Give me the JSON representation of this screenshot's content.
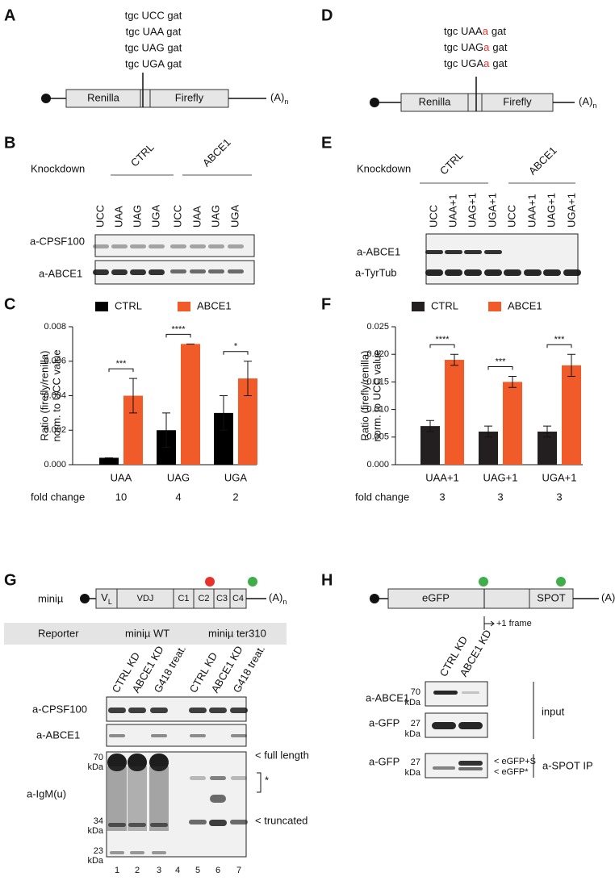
{
  "panels": {
    "A": {
      "label": "A",
      "sequences": [
        "tgc UCC gat",
        "tgc UAA gat",
        "tgc UAG gat",
        "tgc UGA gat"
      ],
      "construct": {
        "renilla": "Renilla",
        "firefly": "Firefly",
        "polya": "(A)",
        "polya_sub": "n"
      }
    },
    "B": {
      "label": "B",
      "knockdown": "Knockdown",
      "groups": [
        "CTRL",
        "ABCE1"
      ],
      "lanes": [
        "UCC",
        "UAA",
        "UAG",
        "UGA",
        "UCC",
        "UAA",
        "UAG",
        "UGA"
      ],
      "antibodies": [
        "a-CPSF100",
        "a-ABCE1"
      ]
    },
    "C": {
      "label": "C"
    },
    "D": {
      "label": "D",
      "sequences": [
        {
          "pre": "tgc UAA",
          "ins": "a",
          "post": "gat"
        },
        {
          "pre": "tgc UAG",
          "ins": "a",
          "post": "gat"
        },
        {
          "pre": "tgc UGA",
          "ins": "a",
          "post": "gat"
        }
      ],
      "construct": {
        "renilla": "Renilla",
        "firefly": "Firefly",
        "polya": "(A)",
        "polya_sub": "n"
      }
    },
    "E": {
      "label": "E",
      "knockdown": "Knockdown",
      "groups": [
        "CTRL",
        "ABCE1"
      ],
      "lanes": [
        "UCC",
        "UAA+1",
        "UAG+1",
        "UGA+1",
        "UCC",
        "UAA+1",
        "UAG+1",
        "UGA+1"
      ],
      "antibodies": [
        "a-ABCE1",
        "a-TyrTub"
      ]
    },
    "F": {
      "label": "F"
    },
    "G": {
      "label": "G",
      "name": "miniµ",
      "construct": {
        "v": "V",
        "v_sub": "L",
        "vdj": "VDJ",
        "c1": "C1",
        "c2": "C2",
        "c3": "C3",
        "c4": "C4",
        "polya": "(A)",
        "polya_sub": "n"
      },
      "header": {
        "reporter": "Reporter",
        "wt": "miniµ WT",
        "ter": "miniµ ter310"
      },
      "lanes": [
        "CTRL KD",
        "ABCE1 KD",
        "G418 treat.",
        "CTRL KD",
        "ABCE1 KD",
        "G418 treat."
      ],
      "antibodies": [
        "a-CPSF100",
        "a-ABCE1",
        "a-IgM(u)"
      ],
      "markers": [
        {
          "size": "70",
          "unit": "kDa"
        },
        {
          "size": "34",
          "unit": "kDa"
        },
        {
          "size": "23",
          "unit": "kDa"
        }
      ],
      "annotations": {
        "full": "< full length",
        "star": "*",
        "truncated": "< truncated"
      },
      "lane_numbers": [
        1,
        2,
        3,
        4,
        5,
        6,
        7
      ]
    },
    "H": {
      "label": "H",
      "construct": {
        "egfp": "eGFP",
        "spot": "SPOT",
        "polya": "(A)",
        "polya_sub": "n",
        "frame": "+1 frame"
      },
      "lanes": [
        "CTRL KD",
        "ABCE1 KD"
      ],
      "antibodies": [
        "a-ABCE1",
        "a-GFP",
        "a-GFP"
      ],
      "markers": [
        {
          "size": "70",
          "unit": "kDa"
        },
        {
          "size": "27",
          "unit": "kDa"
        },
        {
          "size": "27",
          "unit": "kDa"
        }
      ],
      "input": "input",
      "ip": "a-SPOT IP",
      "bands": [
        "< eGFP+S",
        "< eGFP*"
      ]
    }
  },
  "chart_data": [
    {
      "type": "bar",
      "categories": [
        "UAA",
        "UAG",
        "UGA"
      ],
      "series": [
        {
          "name": "CTRL",
          "color": "#000000",
          "values": [
            0.0004,
            0.002,
            0.003
          ],
          "errors": [
            0,
            0.001,
            0.001
          ]
        },
        {
          "name": "ABCE1",
          "color": "#f15a29",
          "values": [
            0.004,
            0.007,
            0.005
          ],
          "errors": [
            0.001,
            0,
            0.001
          ]
        }
      ],
      "ylabel": [
        "Ratio (firefly/renilla)",
        "norm. to UCC value"
      ],
      "ylim": [
        0,
        0.008
      ],
      "yticks": [
        {
          "value": 0,
          "label": "0.000"
        },
        {
          "value": 0.002,
          "label": "0.002"
        },
        {
          "value": 0.004,
          "label": "0.004"
        },
        {
          "value": 0.006,
          "label": "0.006"
        },
        {
          "value": 0.008,
          "label": "0.008"
        }
      ],
      "significance": [
        "***",
        "****",
        "*"
      ],
      "fold_change_label": "fold change",
      "fold_change": [
        10,
        4,
        2
      ],
      "legend": "top"
    },
    {
      "type": "bar",
      "categories": [
        "UAA+1",
        "UAG+1",
        "UGA+1"
      ],
      "series": [
        {
          "name": "CTRL",
          "color": "#231f20",
          "values": [
            0.007,
            0.006,
            0.006
          ],
          "errors": [
            0.001,
            0.001,
            0.001
          ]
        },
        {
          "name": "ABCE1",
          "color": "#f15a29",
          "values": [
            0.019,
            0.015,
            0.018
          ],
          "errors": [
            0.001,
            0.001,
            0.002
          ]
        }
      ],
      "ylabel": [
        "Ratio (firefly/renilla)",
        "norm. to UCC value"
      ],
      "ylim": [
        0,
        0.025
      ],
      "yticks": [
        {
          "value": 0,
          "label": "0.000"
        },
        {
          "value": 0.005,
          "label": "0.005"
        },
        {
          "value": 0.01,
          "label": "0.010"
        },
        {
          "value": 0.015,
          "label": "0.015"
        },
        {
          "value": 0.02,
          "label": "0.020"
        },
        {
          "value": 0.025,
          "label": "0.025"
        }
      ],
      "significance": [
        "****",
        "***",
        "***"
      ],
      "fold_change_label": "fold change",
      "fold_change": [
        3,
        3,
        3
      ],
      "legend": "top"
    }
  ]
}
